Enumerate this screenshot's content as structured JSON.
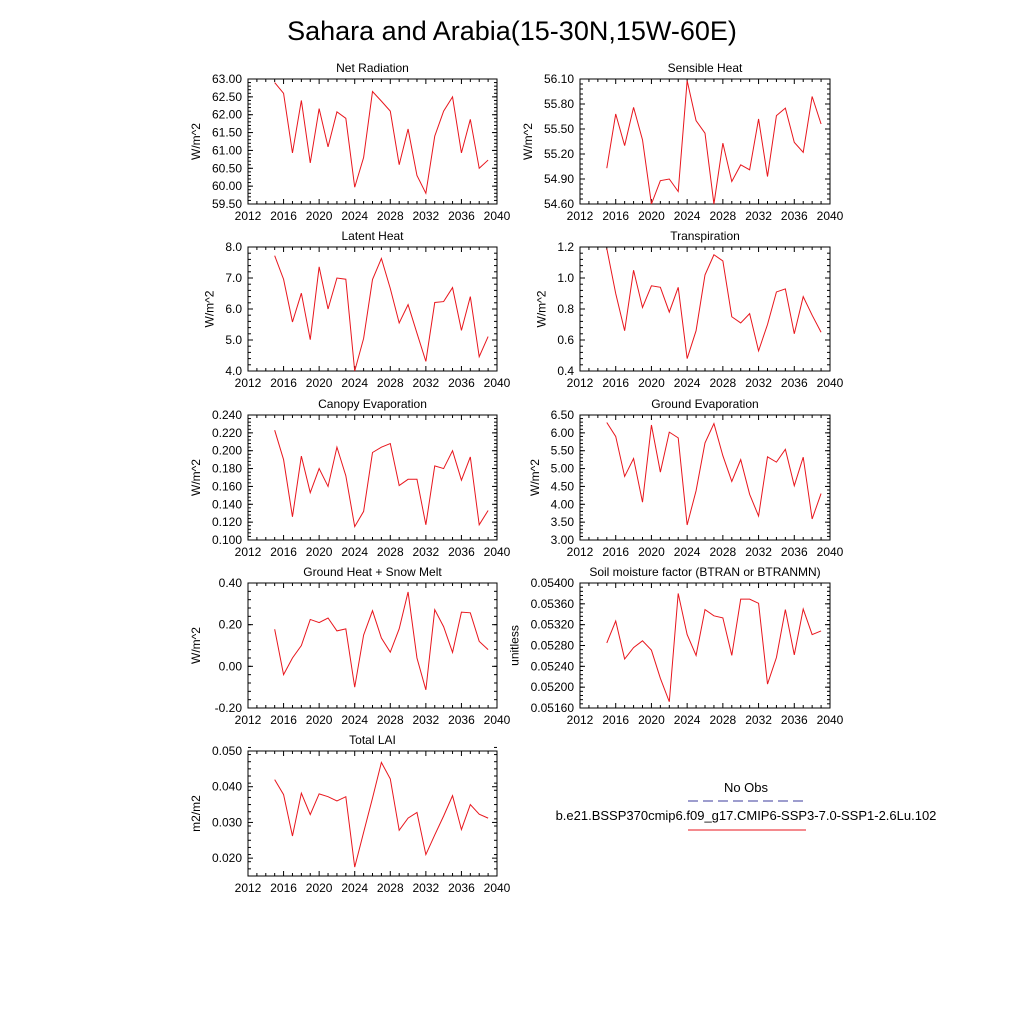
{
  "figure": {
    "title": "Sahara and Arabia(15-30N,15W-60E)"
  },
  "legend": {
    "entries": [
      {
        "label": "No Obs",
        "color": "#3b3b9e",
        "dash": "dashed"
      },
      {
        "label": "b.e21.BSSP370cmip6.f09_g17.CMIP6-SSP3-7.0-SSP1-2.6Lu.102",
        "color": "#e8161d",
        "dash": "solid"
      }
    ]
  },
  "chart_data": [
    {
      "type": "line",
      "title": "Net Radiation",
      "ylabel": "W/m^2",
      "xlim": [
        2012,
        2040
      ],
      "ylim": [
        59.5,
        63.0
      ],
      "xticks": [
        "2012",
        "2016",
        "2020",
        "2024",
        "2028",
        "2032",
        "2036",
        "2040"
      ],
      "yticks": [
        "59.50",
        "60.00",
        "60.50",
        "61.00",
        "61.50",
        "62.00",
        "62.50",
        "63.00"
      ],
      "x": [
        2015,
        2016,
        2017,
        2018,
        2019,
        2020,
        2021,
        2022,
        2023,
        2024,
        2025,
        2026,
        2027,
        2028,
        2029,
        2030,
        2031,
        2032,
        2033,
        2034,
        2035,
        2036,
        2037,
        2038,
        2039
      ],
      "series": [
        {
          "color": "#e8161d",
          "values": [
            62.9,
            62.6,
            60.93,
            62.4,
            60.65,
            62.17,
            61.1,
            62.08,
            61.9,
            59.97,
            60.8,
            62.65,
            62.38,
            62.1,
            60.6,
            61.6,
            60.3,
            59.8,
            61.4,
            62.1,
            62.5,
            60.93,
            61.87,
            60.5,
            60.73
          ]
        }
      ]
    },
    {
      "type": "line",
      "title": "Sensible Heat",
      "ylabel": "W/m^2",
      "xlim": [
        2012,
        2040
      ],
      "ylim": [
        54.6,
        56.1
      ],
      "xticks": [
        "2012",
        "2016",
        "2020",
        "2024",
        "2028",
        "2032",
        "2036",
        "2040"
      ],
      "yticks": [
        "54.60",
        "54.90",
        "55.20",
        "55.50",
        "55.80",
        "56.10"
      ],
      "x": [
        2015,
        2016,
        2017,
        2018,
        2019,
        2020,
        2021,
        2022,
        2023,
        2024,
        2025,
        2026,
        2027,
        2028,
        2029,
        2030,
        2031,
        2032,
        2033,
        2034,
        2035,
        2036,
        2037,
        2038,
        2039
      ],
      "series": [
        {
          "color": "#e8161d",
          "values": [
            55.03,
            55.68,
            55.3,
            55.76,
            55.37,
            54.6,
            54.88,
            54.9,
            54.75,
            56.08,
            55.6,
            55.45,
            54.6,
            55.33,
            54.87,
            55.07,
            55.01,
            55.62,
            54.93,
            55.66,
            55.75,
            55.34,
            55.22,
            55.89,
            55.56
          ]
        }
      ]
    },
    {
      "type": "line",
      "title": "Latent Heat",
      "ylabel": "W/m^2",
      "xlim": [
        2012,
        2040
      ],
      "ylim": [
        4.0,
        8.0
      ],
      "xticks": [
        "2012",
        "2016",
        "2020",
        "2024",
        "2028",
        "2032",
        "2036",
        "2040"
      ],
      "yticks": [
        "4.0",
        "5.0",
        "6.0",
        "7.0",
        "8.0"
      ],
      "x": [
        2015,
        2016,
        2017,
        2018,
        2019,
        2020,
        2021,
        2022,
        2023,
        2024,
        2025,
        2026,
        2027,
        2028,
        2029,
        2030,
        2031,
        2032,
        2033,
        2034,
        2035,
        2036,
        2037,
        2038,
        2039
      ],
      "series": [
        {
          "color": "#e8161d",
          "values": [
            7.72,
            6.96,
            5.58,
            6.51,
            5.01,
            7.36,
            6.0,
            7.0,
            6.96,
            4.0,
            5.05,
            6.95,
            7.63,
            6.66,
            5.55,
            6.14,
            5.22,
            4.31,
            6.21,
            6.24,
            6.69,
            5.31,
            6.4,
            4.46,
            5.11
          ]
        }
      ]
    },
    {
      "type": "line",
      "title": "Transpiration",
      "ylabel": "W/m^2",
      "xlim": [
        2012,
        2040
      ],
      "ylim": [
        0.4,
        1.2
      ],
      "xticks": [
        "2012",
        "2016",
        "2020",
        "2024",
        "2028",
        "2032",
        "2036",
        "2040"
      ],
      "yticks": [
        "0.4",
        "0.6",
        "0.8",
        "1.0",
        "1.2"
      ],
      "x": [
        2015,
        2016,
        2017,
        2018,
        2019,
        2020,
        2021,
        2022,
        2023,
        2024,
        2025,
        2026,
        2027,
        2028,
        2029,
        2030,
        2031,
        2032,
        2033,
        2034,
        2035,
        2036,
        2037,
        2038,
        2039
      ],
      "series": [
        {
          "color": "#e8161d",
          "values": [
            1.19,
            0.9,
            0.66,
            1.05,
            0.81,
            0.95,
            0.94,
            0.78,
            0.94,
            0.48,
            0.66,
            1.02,
            1.15,
            1.11,
            0.75,
            0.71,
            0.77,
            0.53,
            0.7,
            0.91,
            0.93,
            0.64,
            0.88,
            0.76,
            0.65
          ]
        }
      ]
    },
    {
      "type": "line",
      "title": "Canopy Evaporation",
      "ylabel": "W/m^2",
      "xlim": [
        2012,
        2040
      ],
      "ylim": [
        0.1,
        0.24
      ],
      "xticks": [
        "2012",
        "2016",
        "2020",
        "2024",
        "2028",
        "2032",
        "2036",
        "2040"
      ],
      "yticks": [
        "0.100",
        "0.120",
        "0.140",
        "0.160",
        "0.180",
        "0.200",
        "0.220",
        "0.240"
      ],
      "x": [
        2015,
        2016,
        2017,
        2018,
        2019,
        2020,
        2021,
        2022,
        2023,
        2024,
        2025,
        2026,
        2027,
        2028,
        2029,
        2030,
        2031,
        2032,
        2033,
        2034,
        2035,
        2036,
        2037,
        2038,
        2039
      ],
      "series": [
        {
          "color": "#e8161d",
          "values": [
            0.223,
            0.19,
            0.126,
            0.194,
            0.153,
            0.18,
            0.16,
            0.204,
            0.172,
            0.115,
            0.132,
            0.198,
            0.204,
            0.208,
            0.161,
            0.168,
            0.168,
            0.117,
            0.183,
            0.18,
            0.2,
            0.167,
            0.193,
            0.117,
            0.133
          ]
        }
      ]
    },
    {
      "type": "line",
      "title": "Ground Evaporation",
      "ylabel": "W/m^2",
      "xlim": [
        2012,
        2040
      ],
      "ylim": [
        3.0,
        6.5
      ],
      "xticks": [
        "2012",
        "2016",
        "2020",
        "2024",
        "2028",
        "2032",
        "2036",
        "2040"
      ],
      "yticks": [
        "3.00",
        "3.50",
        "4.00",
        "4.50",
        "5.00",
        "5.50",
        "6.00",
        "6.50"
      ],
      "x": [
        2015,
        2016,
        2017,
        2018,
        2019,
        2020,
        2021,
        2022,
        2023,
        2024,
        2025,
        2026,
        2027,
        2028,
        2029,
        2030,
        2031,
        2032,
        2033,
        2034,
        2035,
        2036,
        2037,
        2038,
        2039
      ],
      "series": [
        {
          "color": "#e8161d",
          "values": [
            6.29,
            5.9,
            4.78,
            5.28,
            4.06,
            6.22,
            4.9,
            6.02,
            5.86,
            3.42,
            4.38,
            5.72,
            6.26,
            5.36,
            4.64,
            5.25,
            4.28,
            3.67,
            5.33,
            5.18,
            5.54,
            4.52,
            5.32,
            3.59,
            4.3
          ]
        }
      ]
    },
    {
      "type": "line",
      "title": "Ground Heat + Snow Melt",
      "ylabel": "W/m^2",
      "xlim": [
        2012,
        2040
      ],
      "ylim": [
        -0.2,
        0.4
      ],
      "xticks": [
        "2012",
        "2016",
        "2020",
        "2024",
        "2028",
        "2032",
        "2036",
        "2040"
      ],
      "yticks": [
        "-0.20",
        "0.00",
        "0.20",
        "0.40"
      ],
      "x": [
        2015,
        2016,
        2017,
        2018,
        2019,
        2020,
        2021,
        2022,
        2023,
        2024,
        2025,
        2026,
        2027,
        2028,
        2029,
        2030,
        2031,
        2032,
        2033,
        2034,
        2035,
        2036,
        2037,
        2038,
        2039
      ],
      "series": [
        {
          "color": "#e8161d",
          "values": [
            0.178,
            -0.04,
            0.04,
            0.1,
            0.225,
            0.21,
            0.232,
            0.17,
            0.18,
            -0.1,
            0.15,
            0.267,
            0.136,
            0.068,
            0.18,
            0.357,
            0.04,
            -0.113,
            0.272,
            0.19,
            0.067,
            0.26,
            0.257,
            0.12,
            0.08
          ]
        }
      ]
    },
    {
      "type": "line",
      "title": "Soil moisture factor (BTRAN or BTRANMN)",
      "ylabel": "unitless",
      "xlim": [
        2012,
        2040
      ],
      "ylim": [
        0.0516,
        0.054
      ],
      "xticks": [
        "2012",
        "2016",
        "2020",
        "2024",
        "2028",
        "2032",
        "2036",
        "2040"
      ],
      "yticks": [
        "0.05160",
        "0.05200",
        "0.05240",
        "0.05280",
        "0.05320",
        "0.05360",
        "0.05400"
      ],
      "x": [
        2015,
        2016,
        2017,
        2018,
        2019,
        2020,
        2021,
        2022,
        2023,
        2024,
        2025,
        2026,
        2027,
        2028,
        2029,
        2030,
        2031,
        2032,
        2033,
        2034,
        2035,
        2036,
        2037,
        2038,
        2039
      ],
      "series": [
        {
          "color": "#e8161d",
          "values": [
            0.05285,
            0.05327,
            0.05254,
            0.05276,
            0.05289,
            0.05271,
            0.05217,
            0.05172,
            0.0538,
            0.05301,
            0.05261,
            0.05349,
            0.05337,
            0.05333,
            0.05261,
            0.05369,
            0.05369,
            0.05361,
            0.05206,
            0.05257,
            0.05349,
            0.05262,
            0.0535,
            0.05301,
            0.05308
          ]
        }
      ]
    },
    {
      "type": "line",
      "title": "Total LAI",
      "ylabel": "m2/m2",
      "xlim": [
        2012,
        2040
      ],
      "ylim": [
        0.015,
        0.05
      ],
      "xticks": [
        "2012",
        "2016",
        "2020",
        "2024",
        "2028",
        "2032",
        "2036",
        "2040"
      ],
      "yticks": [
        "0.020",
        "0.030",
        "0.040",
        "0.050"
      ],
      "x": [
        2015,
        2016,
        2017,
        2018,
        2019,
        2020,
        2021,
        2022,
        2023,
        2024,
        2025,
        2026,
        2027,
        2028,
        2029,
        2030,
        2031,
        2032,
        2033,
        2034,
        2035,
        2036,
        2037,
        2038,
        2039
      ],
      "series": [
        {
          "color": "#e8161d",
          "values": [
            0.042,
            0.0378,
            0.0262,
            0.0382,
            0.0322,
            0.038,
            0.0372,
            0.036,
            0.0372,
            0.0175,
            0.0272,
            0.0368,
            0.0468,
            0.0422,
            0.0278,
            0.0312,
            0.0328,
            0.021,
            0.0265,
            0.0318,
            0.0375,
            0.028,
            0.035,
            0.0323,
            0.0312
          ]
        }
      ]
    }
  ]
}
